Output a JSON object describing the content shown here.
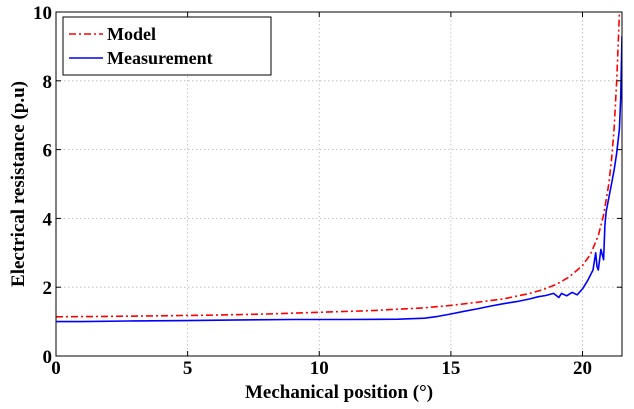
{
  "chart_data": {
    "type": "line",
    "title": "",
    "xlabel": "Mechanical position (°)",
    "ylabel": "Electrical resistance (p.u)",
    "xlim": [
      0,
      21.5
    ],
    "ylim": [
      0,
      10
    ],
    "xticks": [
      0,
      5,
      10,
      15,
      20
    ],
    "yticks": [
      0,
      2,
      4,
      6,
      8,
      10
    ],
    "grid": true,
    "legend_position": "top-left",
    "series": [
      {
        "name": "Model",
        "color": "#ff0000",
        "style": "dash-dot",
        "x": [
          0,
          2,
          4,
          6,
          8,
          10,
          12,
          14,
          15,
          16,
          17,
          18,
          18.5,
          19,
          19.5,
          20,
          20.3,
          20.6,
          20.8,
          21,
          21.1,
          21.2,
          21.3,
          21.35,
          21.4
        ],
        "y": [
          1.14,
          1.15,
          1.17,
          1.19,
          1.22,
          1.27,
          1.32,
          1.4,
          1.47,
          1.56,
          1.66,
          1.82,
          1.93,
          2.08,
          2.3,
          2.63,
          2.95,
          3.5,
          4.1,
          5.0,
          5.7,
          6.6,
          8.0,
          9.0,
          10.0
        ]
      },
      {
        "name": "Measurement",
        "color": "#0000ff",
        "style": "solid",
        "x": [
          0,
          1,
          3,
          5,
          7,
          9,
          11,
          13,
          14,
          14.5,
          15,
          15.5,
          16,
          16.5,
          17,
          17.5,
          18,
          18.3,
          18.6,
          18.9,
          19.1,
          19.2,
          19.4,
          19.6,
          19.8,
          20,
          20.2,
          20.4,
          20.5,
          20.55,
          20.6,
          20.7,
          20.8,
          20.85,
          20.9,
          21,
          21.1,
          21.2,
          21.3,
          21.4,
          21.45,
          21.5
        ],
        "y": [
          1.0,
          1.0,
          1.02,
          1.03,
          1.05,
          1.06,
          1.06,
          1.07,
          1.1,
          1.15,
          1.22,
          1.3,
          1.37,
          1.45,
          1.52,
          1.58,
          1.66,
          1.72,
          1.76,
          1.82,
          1.7,
          1.82,
          1.75,
          1.85,
          1.78,
          1.95,
          2.2,
          2.5,
          3.0,
          2.6,
          2.5,
          3.1,
          2.8,
          3.8,
          4.2,
          4.6,
          5.0,
          5.4,
          5.9,
          6.6,
          7.5,
          9.3
        ]
      }
    ]
  }
}
